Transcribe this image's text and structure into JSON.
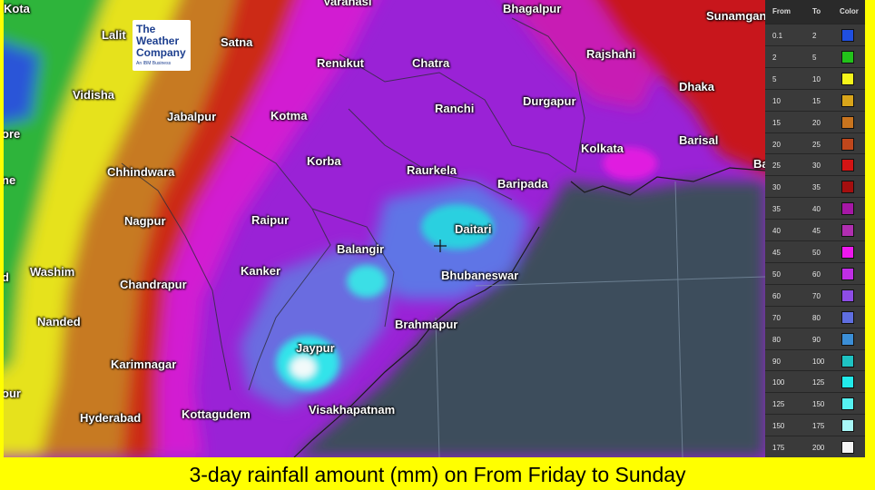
{
  "caption": "3-day rainfall amount (mm) on From Friday to Sunday",
  "logo": {
    "line1": "The",
    "line2": "Weather",
    "line3": "Company",
    "tagline": "An IBM Business"
  },
  "legend": {
    "headers": {
      "from": "From",
      "to": "To",
      "color": "Color"
    },
    "rows": [
      {
        "from": "0.1",
        "to": "2",
        "color": "#1f4fe0"
      },
      {
        "from": "2",
        "to": "5",
        "color": "#22c21a"
      },
      {
        "from": "5",
        "to": "10",
        "color": "#f5f51a"
      },
      {
        "from": "10",
        "to": "15",
        "color": "#d9a51a"
      },
      {
        "from": "15",
        "to": "20",
        "color": "#c8741e"
      },
      {
        "from": "20",
        "to": "25",
        "color": "#c0471c"
      },
      {
        "from": "25",
        "to": "30",
        "color": "#d41414"
      },
      {
        "from": "30",
        "to": "35",
        "color": "#a50f0f"
      },
      {
        "from": "35",
        "to": "40",
        "color": "#a617a6"
      },
      {
        "from": "40",
        "to": "45",
        "color": "#b02eb0"
      },
      {
        "from": "45",
        "to": "50",
        "color": "#ee18ee"
      },
      {
        "from": "50",
        "to": "60",
        "color": "#c02ee6"
      },
      {
        "from": "60",
        "to": "70",
        "color": "#8e4de6"
      },
      {
        "from": "70",
        "to": "80",
        "color": "#5f6ee0"
      },
      {
        "from": "80",
        "to": "90",
        "color": "#3b8ed6"
      },
      {
        "from": "90",
        "to": "100",
        "color": "#1ec2c2"
      },
      {
        "from": "100",
        "to": "125",
        "color": "#22eaea"
      },
      {
        "from": "125",
        "to": "150",
        "color": "#55f2f2"
      },
      {
        "from": "150",
        "to": "175",
        "color": "#a8f8f8"
      },
      {
        "from": "175",
        "to": "200",
        "color": "#f4f4f4"
      }
    ]
  },
  "cities": [
    "Varanasi",
    "Bhagalpur",
    "Sunamgan",
    "Kota",
    "Lalit",
    "Satna",
    "Renukut",
    "Chatra",
    "Rajshahi",
    "Vidisha",
    "Jabalpur",
    "Kotma",
    "Ranchi",
    "Durgapur",
    "Dhaka",
    "ore",
    "Kolkata",
    "Barisal",
    "Chhindwara",
    "Korba",
    "Raurkela",
    "ne",
    "Ba",
    "Baripada",
    "Nagpur",
    "Raipur",
    "Daitari",
    "Balangir",
    "Washim",
    "Kanker",
    "Bhubaneswar",
    "d",
    "Chandrapur",
    "Brahmapur",
    "Nanded",
    "Jaypur",
    "Karimnagar",
    "our",
    "Visakhapatnam",
    "Hyderabad",
    "Kottagudem"
  ]
}
